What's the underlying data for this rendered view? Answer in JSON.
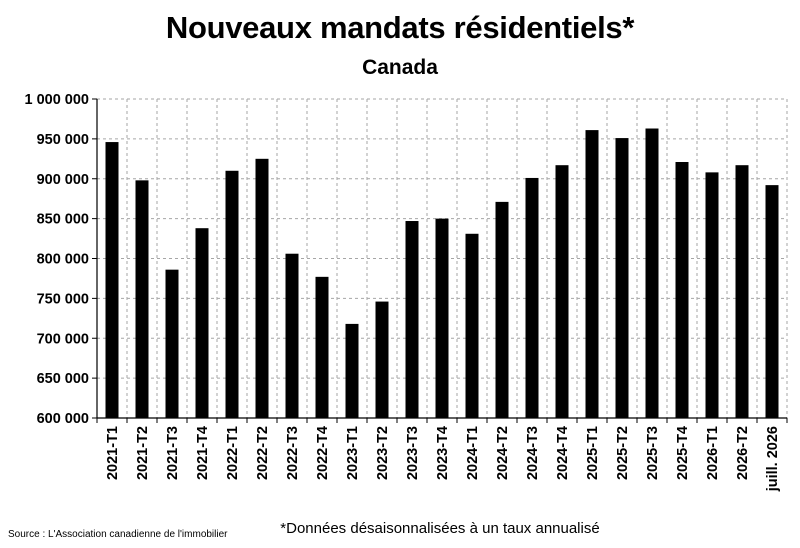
{
  "chart_data": {
    "type": "bar",
    "title": "Nouveaux mandats résidentiels*",
    "subtitle": "Canada",
    "categories": [
      "2021-T1",
      "2021-T2",
      "2021-T3",
      "2021-T4",
      "2022-T1",
      "2022-T2",
      "2022-T3",
      "2022-T4",
      "2023-T1",
      "2023-T2",
      "2023-T3",
      "2023-T4",
      "2024-T1",
      "2024-T2",
      "2024-T3",
      "2024-T4",
      "2025-T1",
      "2025-T2",
      "2025-T3",
      "2025-T4",
      "2026-T1",
      "2026-T2",
      "juill. 2026"
    ],
    "values": [
      946000,
      898000,
      786000,
      838000,
      910000,
      925000,
      806000,
      777000,
      718000,
      746000,
      847000,
      850000,
      831000,
      871000,
      901000,
      917000,
      961000,
      951000,
      963000,
      921000,
      908000,
      917000,
      892000
    ],
    "ylim": [
      600000,
      1000000
    ],
    "yticks": [
      "600 000",
      "650 000",
      "700 000",
      "750 000",
      "800 000",
      "850 000",
      "900 000",
      "950 000",
      "1 000 000"
    ],
    "grid": true,
    "bar_color": "#000000",
    "grid_color": "#a6a6a6"
  },
  "footer": {
    "source": "Source : L'Association canadienne de l'immobilier",
    "note": "*Données désaisonnalisées à un taux annualisé"
  }
}
